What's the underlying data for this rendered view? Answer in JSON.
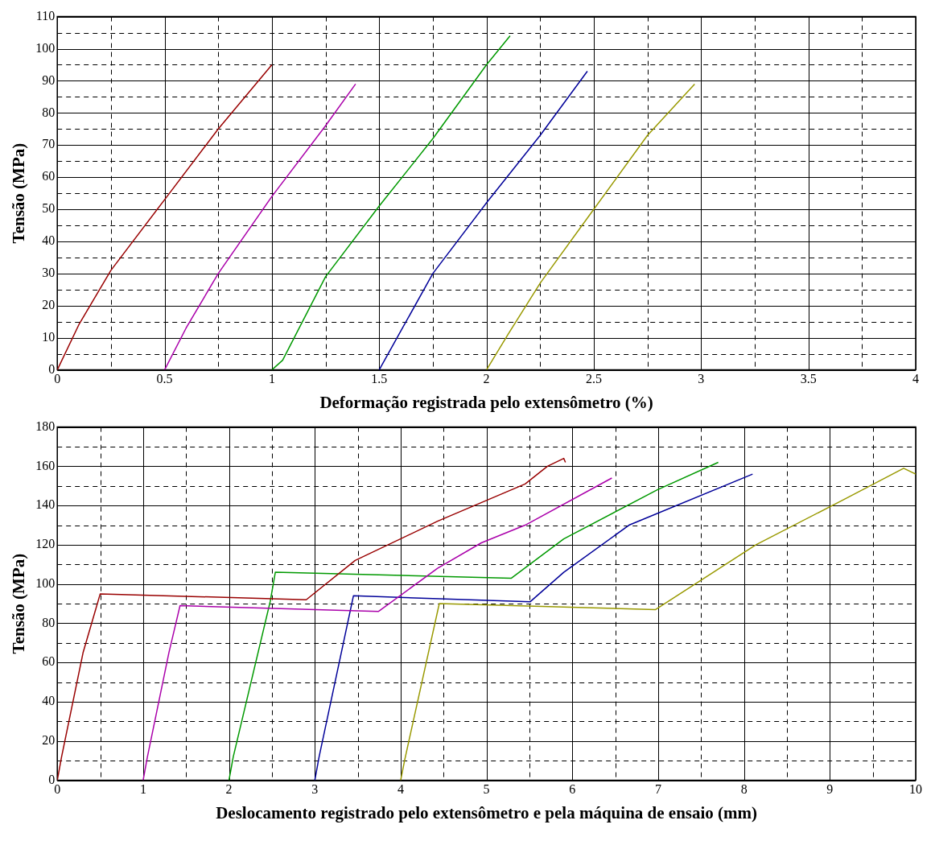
{
  "chart_data": [
    {
      "type": "line",
      "xlabel": "Deformação registrada pelo extensômetro (%)",
      "ylabel": "Tensão (MPa)",
      "xlim": [
        0,
        4
      ],
      "ylim": [
        0,
        110
      ],
      "xticks": [
        0,
        {
          "value": 0.25,
          "label": null
        },
        0.5,
        {
          "value": 0.75,
          "label": null
        },
        1,
        {
          "value": 1.25,
          "label": null
        },
        1.5,
        {
          "value": 1.75,
          "label": null
        },
        2,
        {
          "value": 2.25,
          "label": null
        },
        2.5,
        {
          "value": 2.75,
          "label": null
        },
        3,
        {
          "value": 3.25,
          "label": null
        },
        3.5,
        {
          "value": 3.75,
          "label": null
        },
        4
      ],
      "yticks": [
        0,
        {
          "value": 5,
          "label": null
        },
        10,
        {
          "value": 15,
          "label": null
        },
        20,
        {
          "value": 25,
          "label": null
        },
        30,
        {
          "value": 35,
          "label": null
        },
        40,
        {
          "value": 45,
          "label": null
        },
        50,
        {
          "value": 55,
          "label": null
        },
        60,
        {
          "value": 65,
          "label": null
        },
        70,
        {
          "value": 75,
          "label": null
        },
        80,
        {
          "value": 85,
          "label": null
        },
        90,
        {
          "value": 95,
          "label": null
        },
        100,
        {
          "value": 105,
          "label": null
        },
        110
      ],
      "grid": true,
      "legend": false,
      "marker": "none",
      "line_style": "solid",
      "series": [
        {
          "color": "#990000",
          "x": [
            0,
            0.1,
            0.25,
            0.5,
            0.75,
            1.0
          ],
          "values": [
            0,
            14,
            31,
            53,
            75,
            95
          ]
        },
        {
          "color": "#aa00aa",
          "x": [
            0.5,
            0.6,
            0.75,
            1.0,
            1.25,
            1.39
          ],
          "values": [
            0,
            13,
            30,
            54,
            76,
            89
          ]
        },
        {
          "color": "#009900",
          "x": [
            1.0,
            1.05,
            1.25,
            1.5,
            1.75,
            2.0,
            2.11
          ],
          "values": [
            0,
            3,
            29,
            51,
            72,
            95,
            104
          ]
        },
        {
          "color": "#000099",
          "x": [
            1.5,
            1.6,
            1.75,
            2.0,
            2.25,
            2.47
          ],
          "values": [
            0,
            12,
            30,
            52,
            73,
            93
          ]
        },
        {
          "color": "#999900",
          "x": [
            2.0,
            2.1,
            2.25,
            2.5,
            2.75,
            2.97
          ],
          "values": [
            0,
            11,
            27,
            50,
            73,
            89
          ]
        }
      ]
    },
    {
      "type": "line",
      "xlabel": "Deslocamento registrado pelo extensômetro e pela máquina de ensaio (mm)",
      "ylabel": "Tensão (MPa)",
      "xlim": [
        0,
        10
      ],
      "ylim": [
        0,
        180
      ],
      "xticks": [
        0,
        {
          "value": 0.5,
          "label": null
        },
        1,
        {
          "value": 1.5,
          "label": null
        },
        2,
        {
          "value": 2.5,
          "label": null
        },
        3,
        {
          "value": 3.5,
          "label": null
        },
        4,
        {
          "value": 4.5,
          "label": null
        },
        5,
        {
          "value": 5.5,
          "label": null
        },
        6,
        {
          "value": 6.5,
          "label": null
        },
        7,
        {
          "value": 7.5,
          "label": null
        },
        8,
        {
          "value": 8.5,
          "label": null
        },
        9,
        {
          "value": 9.5,
          "label": null
        },
        10
      ],
      "yticks": [
        0,
        {
          "value": 10,
          "label": null
        },
        20,
        {
          "value": 30,
          "label": null
        },
        40,
        {
          "value": 50,
          "label": null
        },
        60,
        {
          "value": 70,
          "label": null
        },
        80,
        {
          "value": 90,
          "label": null
        },
        100,
        {
          "value": 110,
          "label": null
        },
        120,
        {
          "value": 130,
          "label": null
        },
        140,
        {
          "value": 150,
          "label": null
        },
        160,
        {
          "value": 170,
          "label": null
        },
        180
      ],
      "grid": true,
      "legend": false,
      "marker": "none",
      "line_style": "solid",
      "series": [
        {
          "color": "#990000",
          "x": [
            0,
            0.05,
            0.3,
            0.5,
            2.9,
            3.47,
            4.43,
            5.45,
            5.71,
            5.9,
            5.92
          ],
          "values": [
            0,
            12,
            65,
            95,
            92,
            112,
            132,
            151,
            160,
            164,
            162
          ]
        },
        {
          "color": "#aa00aa",
          "x": [
            1.0,
            1.05,
            1.3,
            1.43,
            3.74,
            4.43,
            4.94,
            5.45,
            6.46
          ],
          "values": [
            0,
            12,
            65,
            89,
            86,
            108,
            121,
            130,
            154
          ]
        },
        {
          "color": "#009900",
          "x": [
            2.0,
            2.05,
            2.48,
            2.54,
            5.29,
            5.9,
            6.99,
            7.7
          ],
          "values": [
            0,
            12,
            91,
            106,
            103,
            123,
            148,
            162
          ]
        },
        {
          "color": "#000099",
          "x": [
            3.0,
            3.05,
            3.45,
            5.51,
            5.9,
            6.66,
            8.1
          ],
          "values": [
            0,
            12,
            94,
            91,
            106,
            130,
            156
          ]
        },
        {
          "color": "#999900",
          "x": [
            4.0,
            4.05,
            4.45,
            6.97,
            8.14,
            9.16,
            9.86,
            10.0
          ],
          "values": [
            0,
            11,
            90,
            87,
            120,
            143,
            159,
            156
          ]
        }
      ]
    }
  ]
}
